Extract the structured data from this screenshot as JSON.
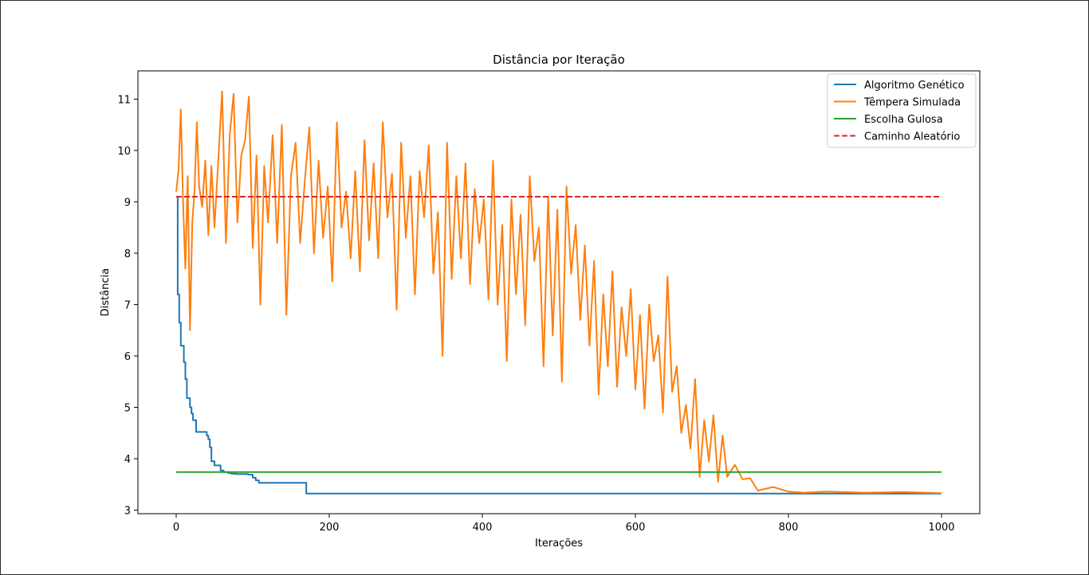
{
  "chart_data": {
    "type": "line",
    "title": "Distância por Iteração",
    "xlabel": "Iterações",
    "ylabel": "Distância",
    "xlim": [
      -50,
      1050
    ],
    "ylim": [
      2.93,
      11.55
    ],
    "xticks": [
      0,
      200,
      400,
      600,
      800,
      1000
    ],
    "xtick_labels": [
      "0",
      "200",
      "400",
      "600",
      "800",
      "1000"
    ],
    "yticks": [
      3,
      4,
      5,
      6,
      7,
      8,
      9,
      10,
      11
    ],
    "ytick_labels": [
      "3",
      "4",
      "5",
      "6",
      "7",
      "8",
      "9",
      "10",
      "11"
    ],
    "grid": false,
    "legend_position": "top-right",
    "series": [
      {
        "name": "Algoritmo Genético",
        "color": "#1f77b4",
        "style": "solid",
        "step": true,
        "x": [
          0,
          2,
          4,
          6,
          10,
          12,
          14,
          16,
          18,
          20,
          22,
          26,
          30,
          40,
          42,
          44,
          46,
          50,
          58,
          62,
          68,
          72,
          74,
          78,
          82,
          86,
          90,
          94,
          100,
          104,
          108,
          112,
          140,
          170,
          200,
          300,
          400,
          500,
          600,
          700,
          800,
          900,
          1000
        ],
        "values": [
          9.1,
          7.2,
          6.65,
          6.2,
          5.88,
          5.55,
          5.18,
          5.18,
          5.0,
          4.88,
          4.75,
          4.52,
          4.52,
          4.45,
          4.38,
          4.22,
          3.95,
          3.87,
          3.77,
          3.74,
          3.72,
          3.71,
          3.71,
          3.7,
          3.7,
          3.7,
          3.7,
          3.69,
          3.63,
          3.58,
          3.53,
          3.53,
          3.53,
          3.32,
          3.32,
          3.32,
          3.32,
          3.32,
          3.32,
          3.32,
          3.32,
          3.32,
          3.32
        ]
      },
      {
        "name": "Têmpera Simulada",
        "color": "#ff7f0e",
        "style": "solid",
        "step": false,
        "x": [
          0,
          3,
          6,
          9,
          12,
          15,
          18,
          21,
          24,
          27,
          30,
          34,
          38,
          42,
          46,
          50,
          55,
          60,
          65,
          70,
          75,
          80,
          85,
          90,
          95,
          100,
          105,
          110,
          115,
          120,
          126,
          132,
          138,
          144,
          150,
          156,
          162,
          168,
          174,
          180,
          186,
          192,
          198,
          204,
          210,
          216,
          222,
          228,
          234,
          240,
          246,
          252,
          258,
          264,
          270,
          276,
          282,
          288,
          294,
          300,
          306,
          312,
          318,
          324,
          330,
          336,
          342,
          348,
          354,
          360,
          366,
          372,
          378,
          384,
          390,
          396,
          402,
          408,
          414,
          420,
          426,
          432,
          438,
          444,
          450,
          456,
          462,
          468,
          474,
          480,
          486,
          492,
          498,
          504,
          510,
          516,
          522,
          528,
          534,
          540,
          546,
          552,
          558,
          564,
          570,
          576,
          582,
          588,
          594,
          600,
          606,
          612,
          618,
          624,
          630,
          636,
          642,
          648,
          654,
          660,
          666,
          672,
          678,
          684,
          690,
          696,
          702,
          708,
          714,
          720,
          730,
          740,
          750,
          760,
          780,
          800,
          820,
          850,
          900,
          950,
          1000
        ],
        "values": [
          9.2,
          9.6,
          10.8,
          9.0,
          7.7,
          9.5,
          6.5,
          8.6,
          9.2,
          10.55,
          9.3,
          8.9,
          9.8,
          8.35,
          9.7,
          8.5,
          9.8,
          11.15,
          8.2,
          10.3,
          11.1,
          8.6,
          9.9,
          10.2,
          11.05,
          8.1,
          9.9,
          7.0,
          9.7,
          8.6,
          10.3,
          8.2,
          10.5,
          6.8,
          9.5,
          10.15,
          8.2,
          9.4,
          10.45,
          8.0,
          9.8,
          8.3,
          9.3,
          7.45,
          10.55,
          8.5,
          9.2,
          7.9,
          9.6,
          7.65,
          10.2,
          8.25,
          9.75,
          7.9,
          10.55,
          8.7,
          9.55,
          6.9,
          10.15,
          8.3,
          9.5,
          7.2,
          9.6,
          8.7,
          10.1,
          7.6,
          8.8,
          6.0,
          10.15,
          7.5,
          9.5,
          7.9,
          9.75,
          7.4,
          9.25,
          8.2,
          9.05,
          7.1,
          9.8,
          7.0,
          8.55,
          5.9,
          9.05,
          7.2,
          8.75,
          6.6,
          9.5,
          7.85,
          8.5,
          5.8,
          9.1,
          6.4,
          8.85,
          5.5,
          9.3,
          7.6,
          8.55,
          6.7,
          8.15,
          6.2,
          7.85,
          5.25,
          7.2,
          5.8,
          7.65,
          5.4,
          6.95,
          6.0,
          7.3,
          5.35,
          6.8,
          4.97,
          7.0,
          5.9,
          6.4,
          4.9,
          7.55,
          5.3,
          5.8,
          4.5,
          5.05,
          4.2,
          5.55,
          3.65,
          4.75,
          3.95,
          4.85,
          3.55,
          4.45,
          3.65,
          3.88,
          3.6,
          3.62,
          3.38,
          3.45,
          3.36,
          3.34,
          3.36,
          3.34,
          3.35,
          3.33
        ]
      },
      {
        "name": "Escolha Gulosa",
        "color": "#2ca02c",
        "style": "solid",
        "step": false,
        "x": [
          0,
          1000
        ],
        "values": [
          3.74,
          3.74
        ]
      },
      {
        "name": "Caminho Aleatório",
        "color": "#d62728",
        "style": "dashed",
        "step": false,
        "x": [
          0,
          1000
        ],
        "values": [
          9.1,
          9.1
        ]
      }
    ]
  }
}
